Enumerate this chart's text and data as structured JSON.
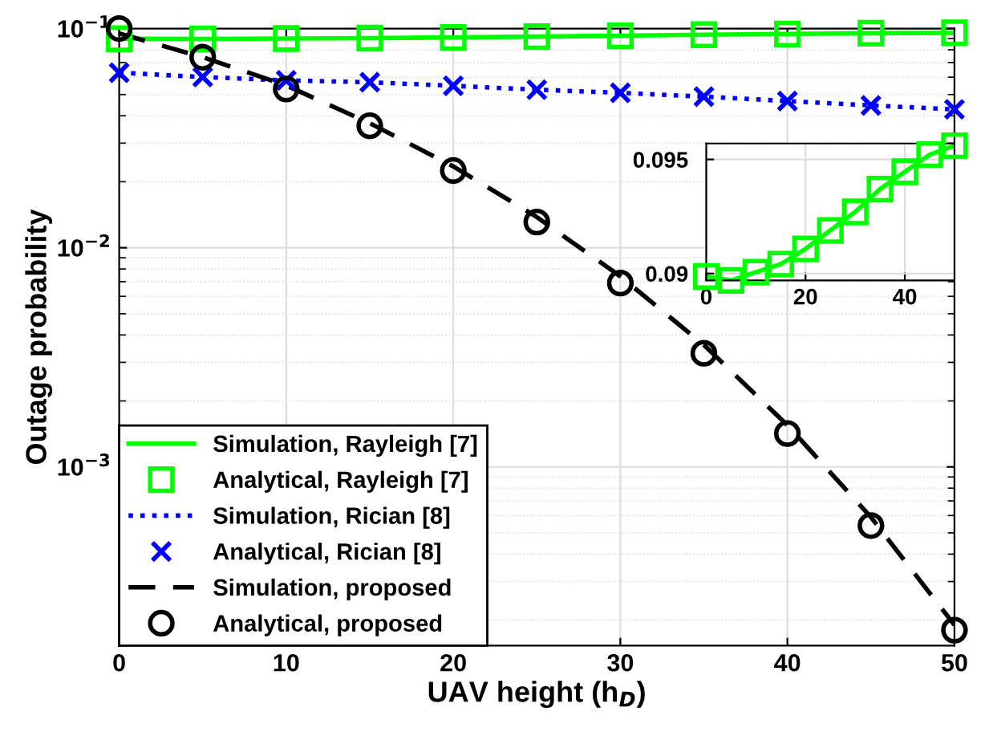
{
  "chart_data": [
    {
      "type": "line",
      "xlabel": "UAV height (h$_{D}$)",
      "ylabel": "Outage probability",
      "log": "y",
      "xlim": [
        0,
        50
      ],
      "xticks": [
        0,
        10,
        20,
        30,
        40,
        50
      ],
      "ylim": [
        0.000153,
        0.1
      ],
      "yticks": [
        {
          "value": 0.001,
          "label": "10$^{−3}$"
        },
        {
          "value": 0.01,
          "label": "10$^{−2}$"
        },
        {
          "value": 0.1,
          "label": "10$^{−1}$"
        }
      ],
      "grid": true,
      "legend": "bottom left",
      "x": [
        0,
        5,
        10,
        15,
        20,
        25,
        30,
        35,
        40,
        45,
        50
      ],
      "series": [
        {
          "name": "Simulation, Rayleigh [7]",
          "type": "line",
          "color": "#00ff00",
          "line_style": "solid",
          "marker": "none",
          "values": [
            0.08987,
            0.0897,
            0.09006,
            0.09041,
            0.09108,
            0.09189,
            0.0927,
            0.0937,
            0.09446,
            0.09521,
            0.0956
          ]
        },
        {
          "name": "Analytical, Rayleigh [7]",
          "type": "scatter",
          "color": "#00ff00",
          "marker": "square",
          "values": [
            0.08987,
            0.0897,
            0.09006,
            0.09041,
            0.09108,
            0.09189,
            0.0927,
            0.0937,
            0.09446,
            0.09521,
            0.0956
          ]
        },
        {
          "name": "Simulation, Rician [8]",
          "type": "line",
          "color": "#0000ff",
          "line_style": "dotted",
          "marker": "none",
          "values": [
            0.0629,
            0.0601,
            0.058,
            0.0569,
            0.0548,
            0.0526,
            0.0509,
            0.0489,
            0.0467,
            0.0446,
            0.0428
          ]
        },
        {
          "name": "Analytical, Rician [8]",
          "type": "scatter",
          "color": "#0000ff",
          "marker": "cross",
          "values": [
            0.0629,
            0.0601,
            0.058,
            0.0569,
            0.0548,
            0.0526,
            0.0509,
            0.0489,
            0.0467,
            0.0446,
            0.0428
          ]
        },
        {
          "name": "Simulation, proposed",
          "type": "line",
          "color": "#000000",
          "line_style": "dashed",
          "marker": "none",
          "values": [
            0.095,
            0.074,
            0.055,
            0.037,
            0.0235,
            0.0138,
            0.0074,
            0.0036,
            0.00155,
            0.00059,
            0.00019
          ]
        },
        {
          "name": "Analytical, proposed",
          "type": "scatter",
          "color": "#000000",
          "marker": "circle",
          "values": [
            0.1,
            0.074,
            0.053,
            0.036,
            0.0225,
            0.0131,
            0.0069,
            0.0033,
            0.00142,
            0.00054,
            0.00018
          ]
        }
      ]
    },
    {
      "type": "line",
      "xlim": [
        0,
        50
      ],
      "xticks": [
        0,
        20,
        40
      ],
      "ylim": [
        0.0897,
        0.0957
      ],
      "yticks": [
        0.09,
        0.095
      ],
      "grid": true,
      "x": [
        0,
        5,
        10,
        15,
        20,
        25,
        30,
        35,
        40,
        45,
        50
      ],
      "series": [
        {
          "type": "line",
          "color": "#00ff00",
          "line_style": "solid",
          "marker": "none",
          "values": [
            0.08987,
            0.0897,
            0.09006,
            0.09041,
            0.09108,
            0.09189,
            0.0927,
            0.0937,
            0.09446,
            0.09521,
            0.0956
          ]
        },
        {
          "type": "scatter",
          "color": "#00ff00",
          "marker": "square",
          "values": [
            0.08987,
            0.0897,
            0.09006,
            0.09041,
            0.09108,
            0.09189,
            0.0927,
            0.0937,
            0.09446,
            0.09521,
            0.0956
          ]
        }
      ]
    }
  ]
}
